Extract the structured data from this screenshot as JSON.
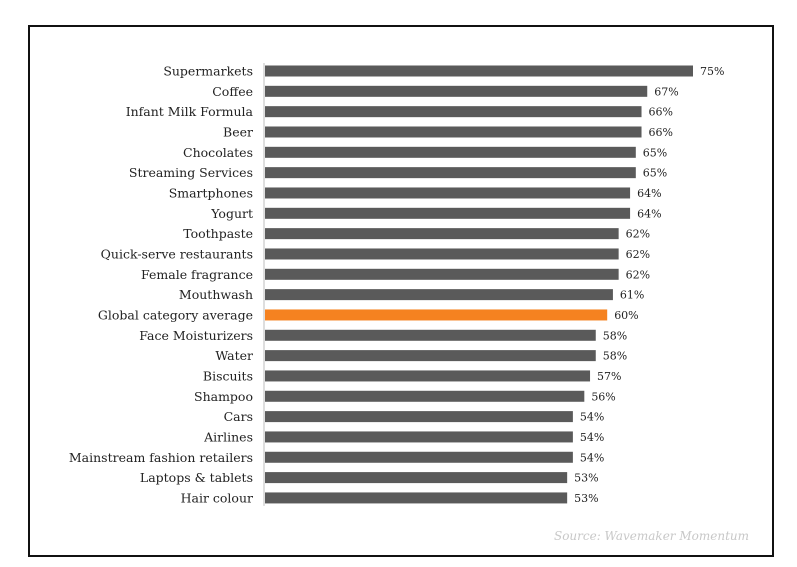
{
  "chart_data": {
    "type": "bar",
    "orientation": "horizontal",
    "categories": [
      "Supermarkets",
      "Coffee",
      "Infant Milk Formula",
      "Beer",
      "Chocolates",
      "Streaming Services",
      "Smartphones",
      "Yogurt",
      "Toothpaste",
      "Quick-serve restaurants",
      "Female fragrance",
      "Mouthwash",
      "Global category average",
      "Face Moisturizers",
      "Water",
      "Biscuits",
      "Shampoo",
      "Cars",
      "Airlines",
      "Mainstream fashion retailers",
      "Laptops & tablets",
      "Hair colour"
    ],
    "values": [
      75,
      67,
      66,
      66,
      65,
      65,
      64,
      64,
      62,
      62,
      62,
      61,
      60,
      58,
      58,
      57,
      56,
      54,
      54,
      54,
      53,
      53
    ],
    "value_labels": [
      "75%",
      "67%",
      "66%",
      "66%",
      "65%",
      "65%",
      "64%",
      "64%",
      "62%",
      "62%",
      "62%",
      "61%",
      "60%",
      "58%",
      "58%",
      "57%",
      "56%",
      "54%",
      "54%",
      "54%",
      "53%",
      "53%"
    ],
    "highlight_category": "Global category average",
    "bar_color": "#5a5a5a",
    "highlight_color": "#f58220",
    "xlim": [
      0,
      75
    ],
    "grid": false,
    "legend": "none",
    "source": "Source: Wavemaker Momentum"
  }
}
